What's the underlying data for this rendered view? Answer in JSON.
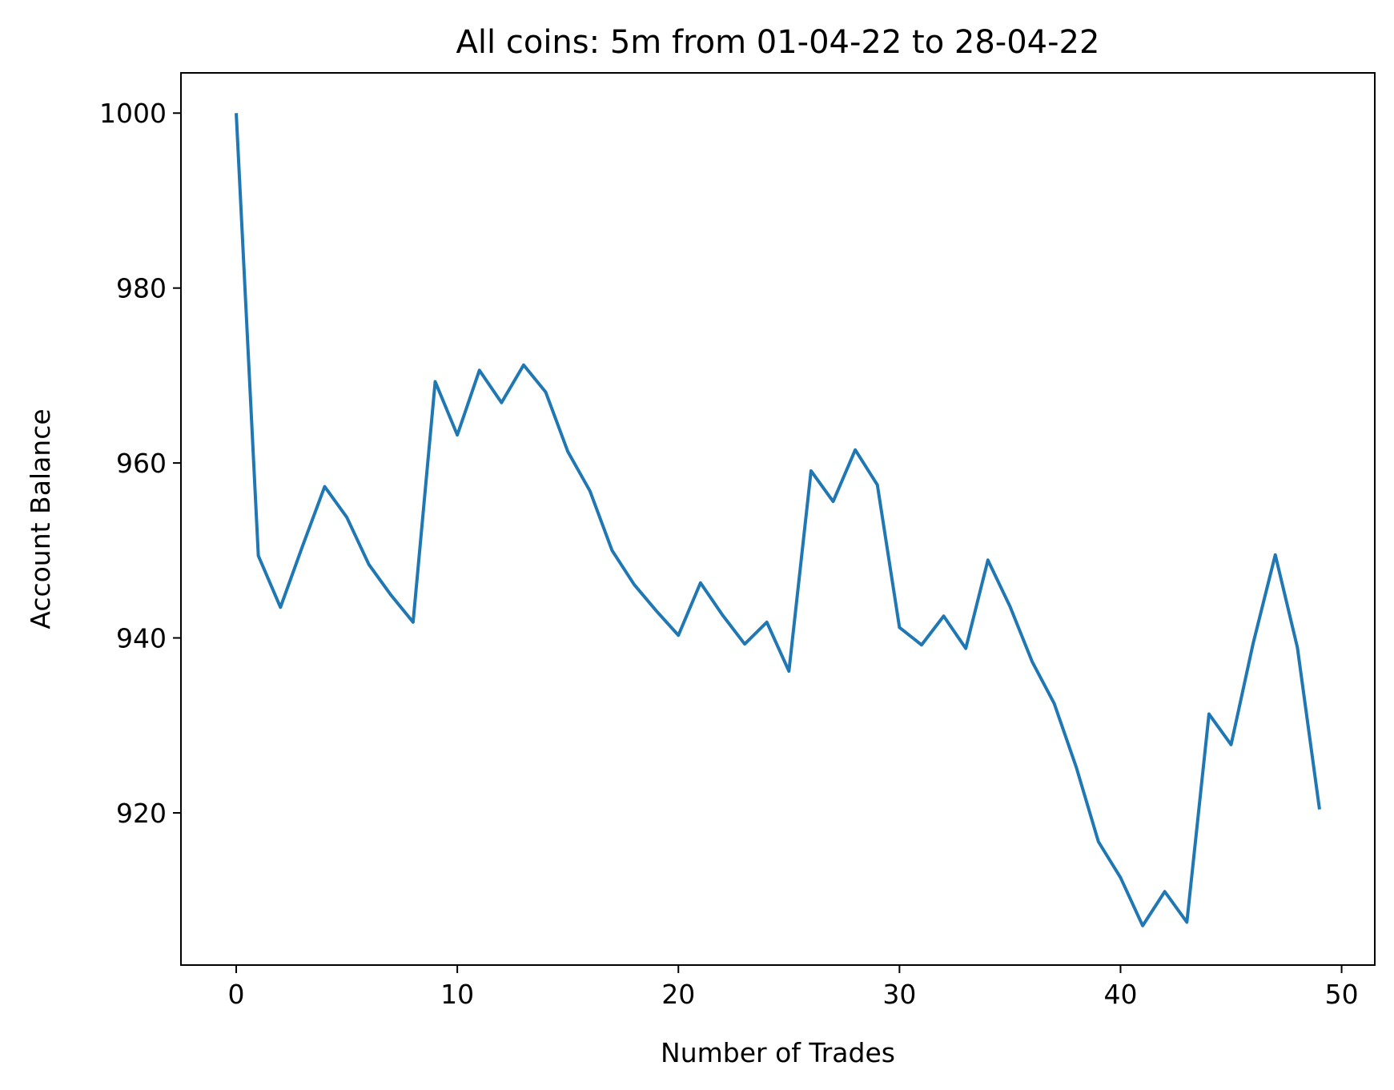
{
  "chart_data": {
    "type": "line",
    "title": "All coins: 5m from 01-04-22 to 28-04-22",
    "xlabel": "Number of Trades",
    "ylabel": "Account Balance",
    "xlim": [
      -2.5,
      51.5
    ],
    "ylim": [
      902.6,
      1004.6
    ],
    "x_ticks": [
      0,
      10,
      20,
      30,
      40,
      50
    ],
    "y_ticks": [
      920,
      940,
      960,
      980,
      1000
    ],
    "x_tick_labels": [
      "0",
      "10",
      "20",
      "30",
      "40",
      "50"
    ],
    "y_tick_labels": [
      "920",
      "940",
      "960",
      "980",
      "1000"
    ],
    "grid": false,
    "legend": "none",
    "line_color": "#1f77b4",
    "x": [
      0,
      1,
      2,
      3,
      4,
      5,
      6,
      7,
      8,
      9,
      10,
      11,
      12,
      13,
      14,
      15,
      16,
      17,
      18,
      19,
      20,
      21,
      22,
      23,
      24,
      25,
      26,
      27,
      28,
      29,
      30,
      31,
      32,
      33,
      34,
      35,
      36,
      37,
      38,
      39,
      40,
      41,
      42,
      43,
      44,
      45,
      46,
      47,
      48,
      49
    ],
    "y": [
      1000.0,
      949.4,
      943.5,
      950.5,
      957.3,
      953.8,
      948.4,
      944.9,
      941.8,
      969.3,
      963.2,
      970.6,
      966.9,
      971.2,
      968.1,
      961.3,
      956.8,
      950.0,
      946.1,
      943.1,
      940.3,
      946.3,
      942.6,
      939.3,
      941.8,
      936.2,
      959.1,
      955.6,
      961.5,
      957.5,
      941.2,
      939.2,
      942.5,
      938.8,
      948.9,
      943.6,
      937.3,
      932.5,
      925.2,
      916.7,
      912.6,
      907.1,
      911.0,
      907.5,
      931.3,
      927.8,
      939.4,
      949.5,
      938.9,
      920.4
    ]
  }
}
